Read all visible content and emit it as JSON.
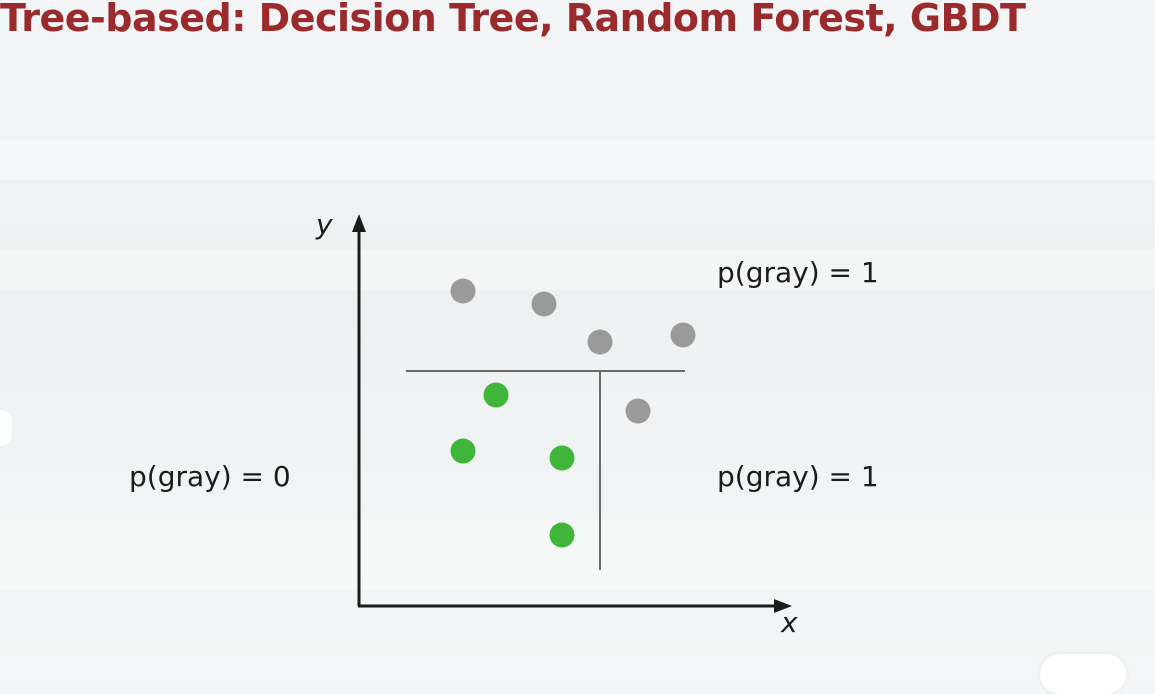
{
  "title": "Tree-based: Decision Tree, Random Forest, GBDT",
  "axes": {
    "x_label": "x",
    "y_label": "y"
  },
  "regions": {
    "top_right": "p(gray) = 1",
    "left": "p(gray) = 0",
    "bottom_right": "p(gray) = 1"
  },
  "colors": {
    "title": "#9b2a2d",
    "gray_point": "#9a9a9a",
    "green_point": "#3fb53a",
    "axis": "#1c1c1c",
    "split_line": "#6b6b6b"
  },
  "points": {
    "gray": [
      [
        463,
        291
      ],
      [
        544,
        304
      ],
      [
        600,
        342
      ],
      [
        683,
        335
      ],
      [
        638,
        411
      ]
    ],
    "green": [
      [
        496,
        395
      ],
      [
        463,
        451
      ],
      [
        562,
        458
      ],
      [
        562,
        535
      ]
    ]
  }
}
